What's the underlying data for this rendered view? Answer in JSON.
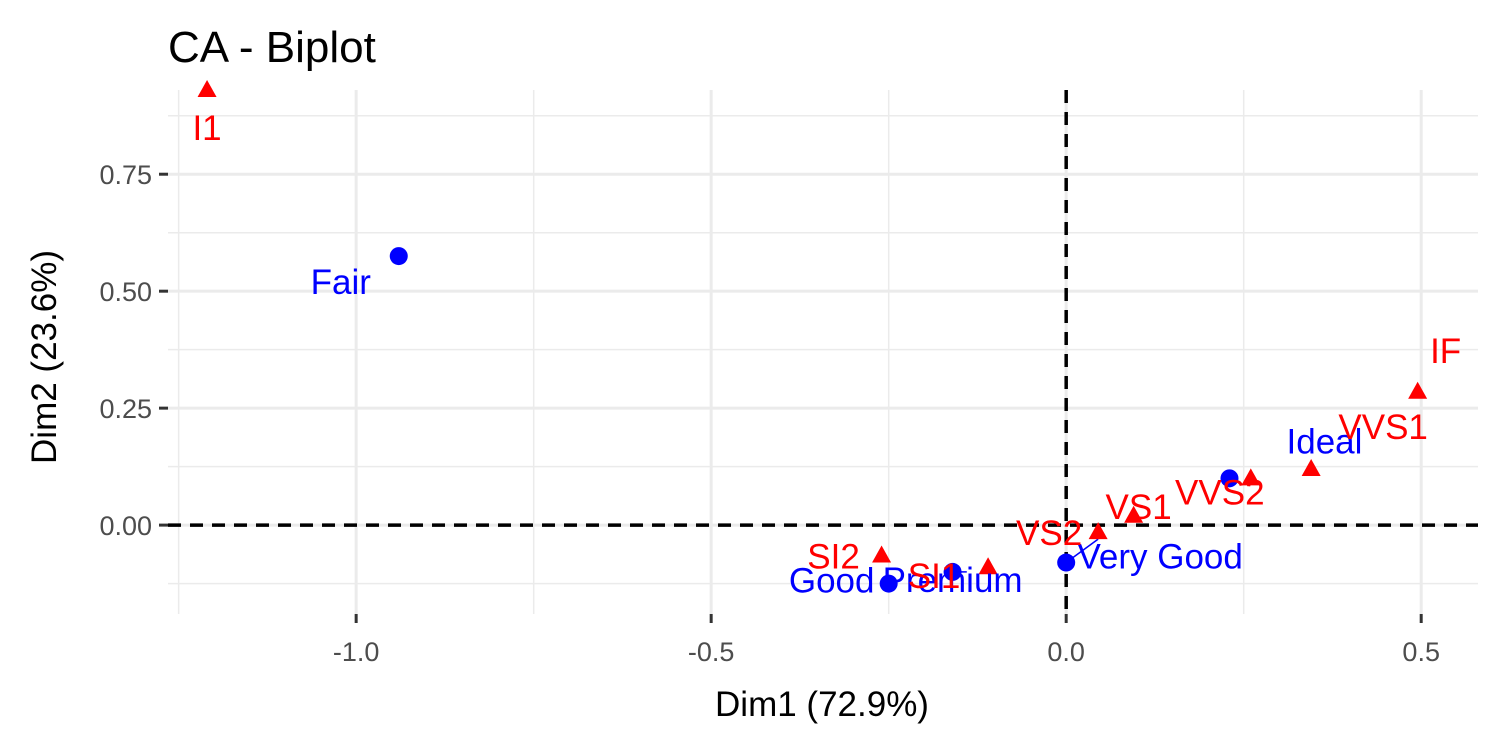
{
  "chart_data": {
    "type": "scatter",
    "title": "CA - Biplot",
    "xlabel": "Dim1 (72.9%)",
    "ylabel": "Dim2 (23.6%)",
    "xlim": [
      -1.265,
      0.58
    ],
    "ylim": [
      -0.19,
      0.93
    ],
    "x_ticks": [
      -1.0,
      -0.5,
      0.0,
      0.5
    ],
    "x_tick_labels": [
      "-1.0",
      "-0.5",
      "0.0",
      "0.5"
    ],
    "y_ticks": [
      0.0,
      0.25,
      0.5,
      0.75
    ],
    "y_tick_labels": [
      "0.00",
      "0.25",
      "0.50",
      "0.75"
    ],
    "grid": true,
    "reference_lines": {
      "x": 0,
      "y": 0,
      "style": "dashed"
    },
    "colors": {
      "rows": "#0000ff",
      "columns": "#ff0000",
      "grid": "#ebebeb",
      "reference": "#000000"
    },
    "series": [
      {
        "role": "rows",
        "marker": "circle",
        "points": [
          {
            "label": "Fair",
            "x": -0.94,
            "y": 0.575
          },
          {
            "label": "Good",
            "x": -0.25,
            "y": -0.125
          },
          {
            "label": "Very Good",
            "x": 0.0,
            "y": -0.08
          },
          {
            "label": "Premium",
            "x": -0.16,
            "y": -0.1
          },
          {
            "label": "Ideal",
            "x": 0.23,
            "y": 0.1
          }
        ]
      },
      {
        "role": "columns",
        "marker": "triangle",
        "points": [
          {
            "label": "I1",
            "x": -1.21,
            "y": 0.93
          },
          {
            "label": "SI2",
            "x": -0.26,
            "y": -0.065
          },
          {
            "label": "SI1",
            "x": -0.11,
            "y": -0.09
          },
          {
            "label": "VS2",
            "x": 0.045,
            "y": -0.015
          },
          {
            "label": "VS1",
            "x": 0.095,
            "y": 0.02
          },
          {
            "label": "VVS2",
            "x": 0.26,
            "y": 0.1
          },
          {
            "label": "VVS1",
            "x": 0.345,
            "y": 0.12
          },
          {
            "label": "IF",
            "x": 0.495,
            "y": 0.285
          }
        ]
      }
    ]
  }
}
